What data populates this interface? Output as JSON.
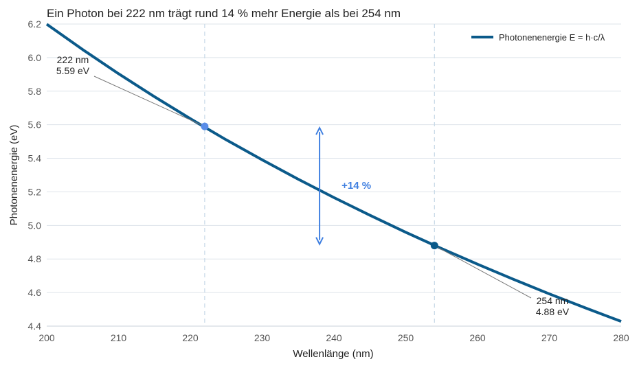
{
  "chart_data": {
    "type": "line",
    "title": "Ein Photon bei 222 nm trägt rund 14 % mehr Energie als bei 254 nm",
    "xlabel": "Wellenlänge (nm)",
    "ylabel": "Photonenenergie (eV)",
    "xlim": [
      200,
      280
    ],
    "ylim": [
      4.4,
      6.2
    ],
    "xticks": [
      "200",
      "210",
      "220",
      "230",
      "240",
      "250",
      "260",
      "270",
      "280"
    ],
    "yticks": [
      "4.4",
      "4.6",
      "4.8",
      "5.0",
      "5.2",
      "5.4",
      "5.6",
      "5.8",
      "6.0",
      "6.2"
    ],
    "grid": "horizontal",
    "legend_position": "top-right",
    "hc_ev_nm": 1239.84,
    "series": [
      {
        "name": "Photonenenergie E = h·c/λ",
        "color": "#0b5a8a",
        "x": [
          200,
          205,
          210,
          215,
          220,
          225,
          230,
          235,
          240,
          245,
          250,
          255,
          260,
          265,
          270,
          275,
          280
        ],
        "y": [
          6.199,
          6.048,
          5.904,
          5.767,
          5.636,
          5.51,
          5.391,
          5.276,
          5.166,
          5.061,
          4.959,
          4.862,
          4.769,
          4.679,
          4.592,
          4.509,
          4.428
        ]
      }
    ],
    "reference_lines_x": [
      222,
      254
    ],
    "points": [
      {
        "x": 222,
        "y": 5.59,
        "label_line1": "222 nm",
        "label_line2": "5.59 eV",
        "color": "#5a8de8"
      },
      {
        "x": 254,
        "y": 4.88,
        "label_line1": "254 nm",
        "label_line2": "4.88 eV",
        "color": "#0b5a8a"
      }
    ],
    "difference_arrow": {
      "x": 238,
      "y_from": 4.88,
      "y_to": 5.59,
      "label": "+14 %",
      "color": "#3f7fe0"
    }
  }
}
